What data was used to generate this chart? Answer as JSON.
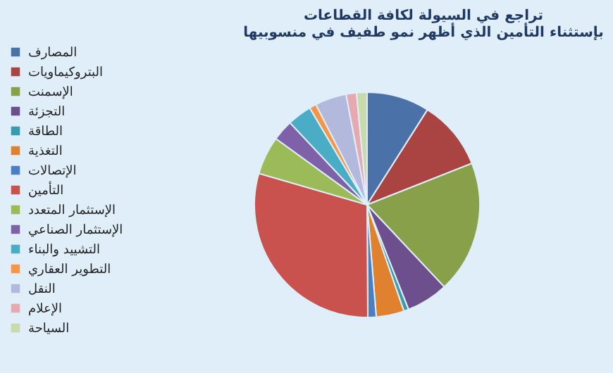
{
  "chart_data": {
    "type": "pie",
    "title": "تراجع في السيولة لكافة القطاعات\nبإستثناء التأمين الذي أظهر نمو طفيف في منسوبيها",
    "categories": [
      "المصارف",
      "البتروكيماويات",
      "الإسمنت",
      "التجزئة",
      "الطاقة",
      "التغذية",
      "الإتصالات",
      "التأمين",
      "الإستثمار المتعدد",
      "الإستثمار الصناعي",
      "التشييد والبناء",
      "التطوير العقاري",
      "النقل",
      "الإعلام",
      "السياحة"
    ],
    "values": [
      9,
      10,
      19,
      6,
      0.7,
      4,
      1.2,
      29.6,
      5.5,
      3,
      3.5,
      1,
      4.5,
      1.5,
      1.5
    ],
    "colors": [
      "#4a72a8",
      "#a94442",
      "#88a04a",
      "#6e4f8e",
      "#3a9ab0",
      "#e0812f",
      "#4a7fc3",
      "#c9524f",
      "#9bbb59",
      "#7e61a8",
      "#4bacc6",
      "#f79646",
      "#b3b9dc",
      "#e6a9b0",
      "#c9dbab"
    ],
    "legend": "left"
  }
}
